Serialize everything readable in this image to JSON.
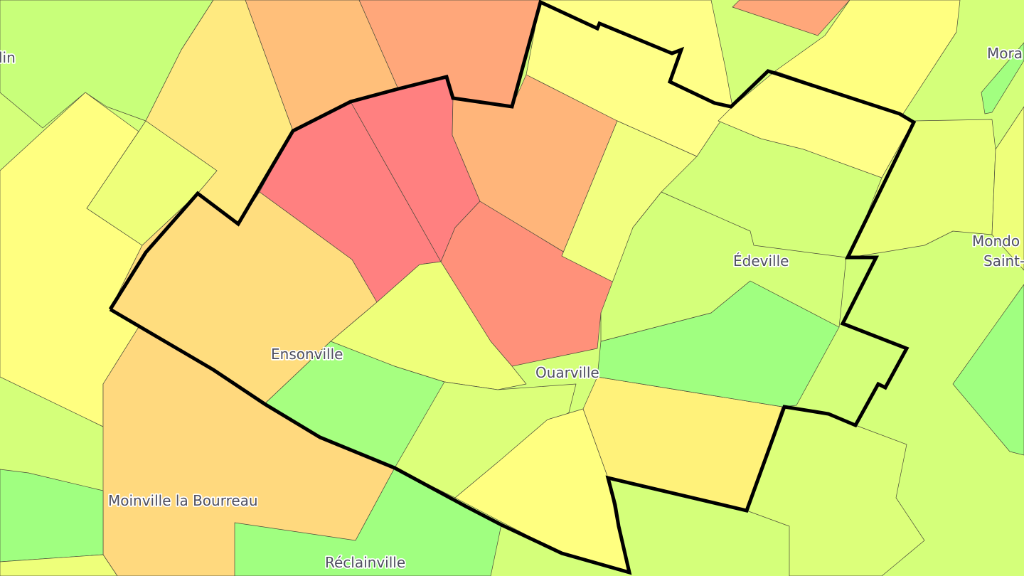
{
  "map": {
    "colors": {
      "red": "#ff8080",
      "salmon": "#ff917a",
      "light_salmon": "#ffa77a",
      "orange": "#ffb97a",
      "light_orange": "#ffdb7e",
      "yellow_orange": "#ffea80",
      "yellow": "#ffff80",
      "yellow_green": "#eeff7a",
      "light_green": "#d4ff7a",
      "green": "#a2ff80",
      "boundary": "#000000"
    },
    "labels": {
      "lin": "lin",
      "mora": "Mora",
      "mondo": "Mondo",
      "saint": "Saint-",
      "edeville": "Édeville",
      "ensonville": "Ensonville",
      "ouarville": "Ouarville",
      "moinville": "Moinville la Bourreau",
      "reclainville": "Réclainville"
    }
  }
}
